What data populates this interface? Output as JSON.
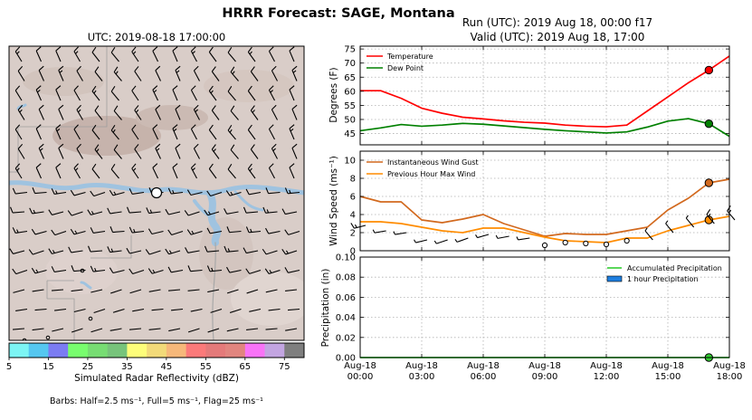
{
  "figure": {
    "title": "HRRR Forecast: SAGE, Montana",
    "map_title": "UTC: 2019-08-18 17:00:00",
    "run_line": "Run (UTC): 2019 Aug 18, 00:00 f17",
    "valid_line": "Valid (UTC): 2019 Aug 18, 17:00",
    "barbs_note": "Barbs: Half=2.5 ms⁻¹, Full=5 ms⁻¹, Flag=25 ms⁻¹"
  },
  "colorbar": {
    "label": "Simulated Radar Reflectivity (dBZ)",
    "ticks": [
      "5",
      "15",
      "25",
      "35",
      "45",
      "55",
      "65",
      "75"
    ],
    "colors": [
      "#7cf5f4",
      "#55c7f0",
      "#7b7cf2",
      "#78fd6e",
      "#77dd73",
      "#77c47b",
      "#fdfd7a",
      "#f2da79",
      "#f6b87a",
      "#fb7a7a",
      "#e47a7a",
      "#e1857f",
      "#f973f7",
      "#c3a5e1",
      "#7f7f7f"
    ]
  },
  "map": {
    "background": "#d9cdc8",
    "river_color": "#9fc3e0",
    "site_marker_color": "#ffffff"
  },
  "chart_data": [
    {
      "type": "line",
      "x": [
        "00:00",
        "01:00",
        "02:00",
        "03:00",
        "04:00",
        "05:00",
        "06:00",
        "07:00",
        "08:00",
        "09:00",
        "10:00",
        "11:00",
        "12:00",
        "13:00",
        "14:00",
        "15:00",
        "16:00",
        "17:00",
        "18:00"
      ],
      "series": [
        {
          "name": "Temperature",
          "color": "#ff0000",
          "values": [
            60.2,
            60.2,
            57.5,
            54.0,
            52.2,
            50.8,
            50.2,
            49.5,
            49.0,
            48.7,
            48.0,
            47.6,
            47.4,
            48.0,
            53.0,
            58.0,
            63.0,
            67.5,
            72.5
          ]
        },
        {
          "name": "Dew Point",
          "color": "#008000",
          "values": [
            46.0,
            47.0,
            48.2,
            47.6,
            48.0,
            48.6,
            48.3,
            47.7,
            47.1,
            46.5,
            46.0,
            45.6,
            45.2,
            45.6,
            47.3,
            49.4,
            50.3,
            48.5,
            44.0
          ]
        }
      ],
      "markers": [
        {
          "x": "17:00",
          "series": "Temperature",
          "value": 67.5
        },
        {
          "x": "17:00",
          "series": "Dew Point",
          "value": 48.5
        }
      ],
      "xlabel": "",
      "ylabel": "Degrees (F)",
      "ylim": [
        41,
        76
      ],
      "yticks": [
        "45",
        "50",
        "55",
        "60",
        "65",
        "70",
        "75"
      ],
      "grid": true,
      "legend": "top-left"
    },
    {
      "type": "line",
      "x": [
        "00:00",
        "01:00",
        "02:00",
        "03:00",
        "04:00",
        "05:00",
        "06:00",
        "07:00",
        "08:00",
        "09:00",
        "10:00",
        "11:00",
        "12:00",
        "13:00",
        "14:00",
        "15:00",
        "16:00",
        "17:00",
        "18:00"
      ],
      "series": [
        {
          "name": "Instantaneous Wind Gust",
          "color": "#d2691e",
          "values": [
            6.0,
            5.4,
            5.4,
            3.4,
            3.1,
            3.5,
            4.0,
            3.0,
            2.3,
            1.6,
            1.9,
            1.8,
            1.8,
            2.2,
            2.6,
            4.5,
            5.8,
            7.5,
            7.9
          ]
        },
        {
          "name": "Previous Hour Max Wind",
          "color": "#ff8c00",
          "values": [
            3.2,
            3.2,
            3.0,
            2.6,
            2.2,
            2.0,
            2.5,
            2.5,
            2.0,
            1.5,
            1.1,
            1.0,
            0.9,
            1.4,
            1.4,
            2.2,
            2.8,
            3.4,
            3.8
          ]
        }
      ],
      "markers": [
        {
          "x": "17:00",
          "series": "Instantaneous Wind Gust",
          "value": 7.5
        },
        {
          "x": "17:00",
          "series": "Previous Hour Max Wind",
          "value": 3.4
        }
      ],
      "barb_row": {
        "speeds": [
          2.8,
          2.2,
          2.0,
          1.2,
          1.2,
          1.4,
          1.8,
          1.6,
          1.4,
          0.6,
          0.9,
          0.8,
          0.7,
          1.1,
          1.2,
          2.0,
          2.6,
          3.0,
          3.4
        ]
      },
      "xlabel": "",
      "ylabel": "Wind Speed (ms⁻¹)",
      "ylim": [
        0,
        11
      ],
      "yticks": [
        "0",
        "2",
        "4",
        "6",
        "8",
        "10"
      ],
      "grid": true,
      "legend": "top-left"
    },
    {
      "type": "bar",
      "x": [
        "00:00",
        "01:00",
        "02:00",
        "03:00",
        "04:00",
        "05:00",
        "06:00",
        "07:00",
        "08:00",
        "09:00",
        "10:00",
        "11:00",
        "12:00",
        "13:00",
        "14:00",
        "15:00",
        "16:00",
        "17:00",
        "18:00"
      ],
      "series": [
        {
          "name": "Accumulated Precipitation",
          "color": "#32cd32",
          "kind": "line",
          "values": [
            0,
            0,
            0,
            0,
            0,
            0,
            0,
            0,
            0,
            0,
            0,
            0,
            0,
            0,
            0,
            0,
            0,
            0,
            0
          ]
        },
        {
          "name": "1 hour Precipitation",
          "color": "#1e7fe0",
          "kind": "bar",
          "values": [
            0,
            0,
            0,
            0,
            0,
            0,
            0,
            0,
            0,
            0,
            0,
            0,
            0,
            0,
            0,
            0,
            0,
            0,
            0
          ]
        }
      ],
      "markers": [
        {
          "x": "17:00",
          "series": "Accumulated Precipitation",
          "value": 0
        }
      ],
      "xlabel": "",
      "ylabel": "Precipitation (in)",
      "ylim": [
        0,
        0.1
      ],
      "yticks": [
        "0.00",
        "0.02",
        "0.04",
        "0.06",
        "0.08",
        "0.10"
      ],
      "xticks": [
        [
          "Aug-18",
          "00:00"
        ],
        [
          "Aug-18",
          "03:00"
        ],
        [
          "Aug-18",
          "06:00"
        ],
        [
          "Aug-18",
          "09:00"
        ],
        [
          "Aug-18",
          "12:00"
        ],
        [
          "Aug-18",
          "15:00"
        ],
        [
          "Aug-18",
          "18:00"
        ]
      ],
      "grid": true,
      "legend": "top-right"
    }
  ]
}
